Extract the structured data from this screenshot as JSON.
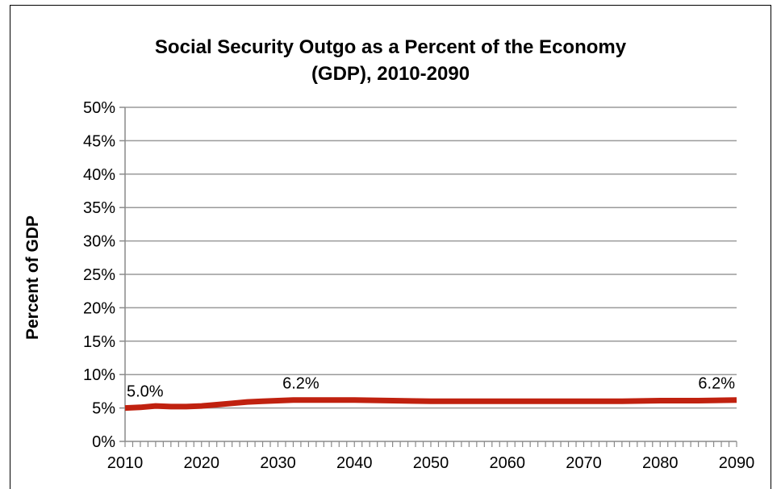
{
  "chart_data": {
    "type": "line",
    "title": [
      "Social Security Outgo as a Percent of the Economy",
      "(GDP), 2010-2090"
    ],
    "ylabel": "Percent of GDP",
    "xlabel": "",
    "xlim": [
      2010,
      2090
    ],
    "ylim": [
      0,
      50
    ],
    "y_ticks": [
      0,
      5,
      10,
      15,
      20,
      25,
      30,
      35,
      40,
      45,
      50
    ],
    "y_tick_labels": [
      "0%",
      "5%",
      "10%",
      "15%",
      "20%",
      "25%",
      "30%",
      "35%",
      "40%",
      "45%",
      "50%"
    ],
    "x_ticks": [
      2010,
      2020,
      2030,
      2040,
      2050,
      2060,
      2070,
      2080,
      2090
    ],
    "x_tick_labels": [
      "2010",
      "2020",
      "2030",
      "2040",
      "2050",
      "2060",
      "2070",
      "2080",
      "2090"
    ],
    "grid": true,
    "legend": "none",
    "series": [
      {
        "color": "#c0210f",
        "x": [
          2010,
          2012,
          2014,
          2016,
          2018,
          2020,
          2022,
          2024,
          2026,
          2028,
          2030,
          2032,
          2034,
          2036,
          2038,
          2040,
          2045,
          2050,
          2055,
          2060,
          2065,
          2070,
          2075,
          2080,
          2085,
          2090
        ],
        "y": [
          5.0,
          5.1,
          5.3,
          5.2,
          5.2,
          5.3,
          5.5,
          5.7,
          5.9,
          6.0,
          6.1,
          6.2,
          6.2,
          6.2,
          6.2,
          6.2,
          6.1,
          6.0,
          6.0,
          6.0,
          6.0,
          6.0,
          6.0,
          6.1,
          6.1,
          6.2
        ]
      }
    ],
    "annotations": [
      {
        "x": 2010,
        "y": 5.0,
        "text": "5.0%",
        "anchor": "start"
      },
      {
        "x": 2033,
        "y": 6.2,
        "text": "6.2%",
        "anchor": "middle"
      },
      {
        "x": 2090,
        "y": 6.2,
        "text": "6.2%",
        "anchor": "end"
      }
    ]
  }
}
